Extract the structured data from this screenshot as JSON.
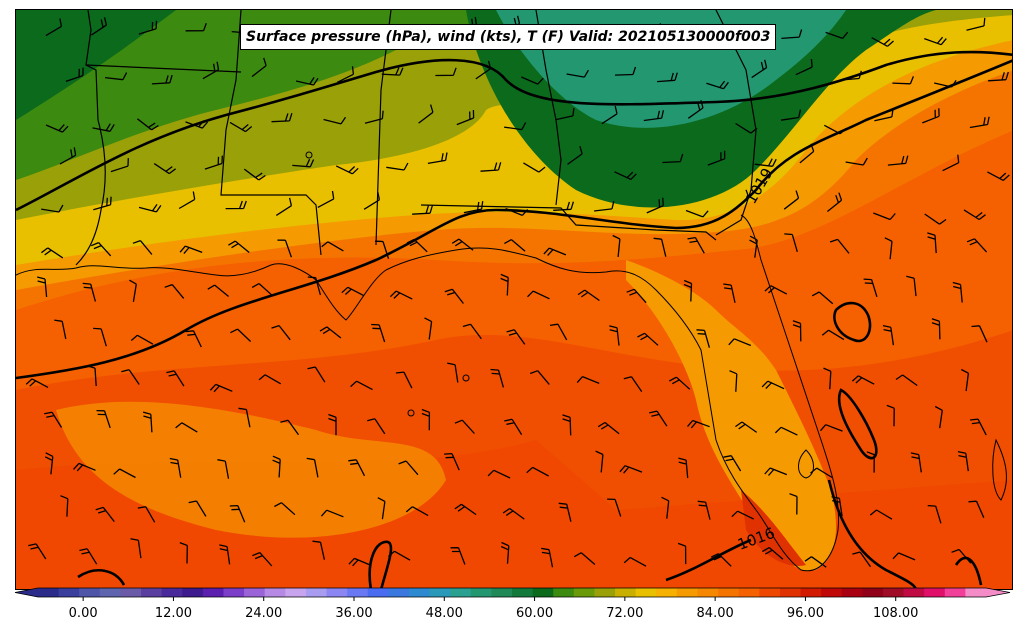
{
  "title": "Surface pressure (hPa), wind (kts), T (F) Valid: 202105130000f003",
  "isobar_labels": [
    "1019",
    "1016"
  ],
  "colorbar": {
    "tick_labels": [
      "0.00",
      "12.00",
      "24.00",
      "36.00",
      "48.00",
      "60.00",
      "72.00",
      "84.00",
      "96.00",
      "108.00"
    ],
    "tick_values": [
      0,
      12,
      24,
      36,
      48,
      60,
      72,
      84,
      96,
      108
    ],
    "range": [
      -6,
      120
    ],
    "step": 3,
    "colors": [
      "#2b2b8a",
      "#3a3f9e",
      "#4e55a8",
      "#5e64ae",
      "#6a5aa8",
      "#5a3fa0",
      "#4a2a9a",
      "#3d1a8e",
      "#5b1fb0",
      "#7a3ec8",
      "#9a64d8",
      "#b68ae4",
      "#c8a4ee",
      "#a89cf0",
      "#8b86f2",
      "#6a78f4",
      "#4a6cf0",
      "#3a78e0",
      "#2e8ad0",
      "#2a98b8",
      "#2aa090",
      "#239870",
      "#1f8a58",
      "#147a3c",
      "#0b6a1c",
      "#3d8a10",
      "#6a9a0a",
      "#9aa008",
      "#c9b000",
      "#e8c000",
      "#f5b000",
      "#f59a00",
      "#f58800",
      "#f57400",
      "#f56000",
      "#ee4800",
      "#e03200",
      "#d21a00",
      "#c00808",
      "#a80010",
      "#900018",
      "#a00c28",
      "#c00a44",
      "#e0106a",
      "#f2409a",
      "#f48cc8"
    ]
  },
  "map": {
    "temperature_field_legend_unit": "F",
    "wind_barbs_visible": true,
    "state_borders_visible": true,
    "coastlines_visible": true
  }
}
